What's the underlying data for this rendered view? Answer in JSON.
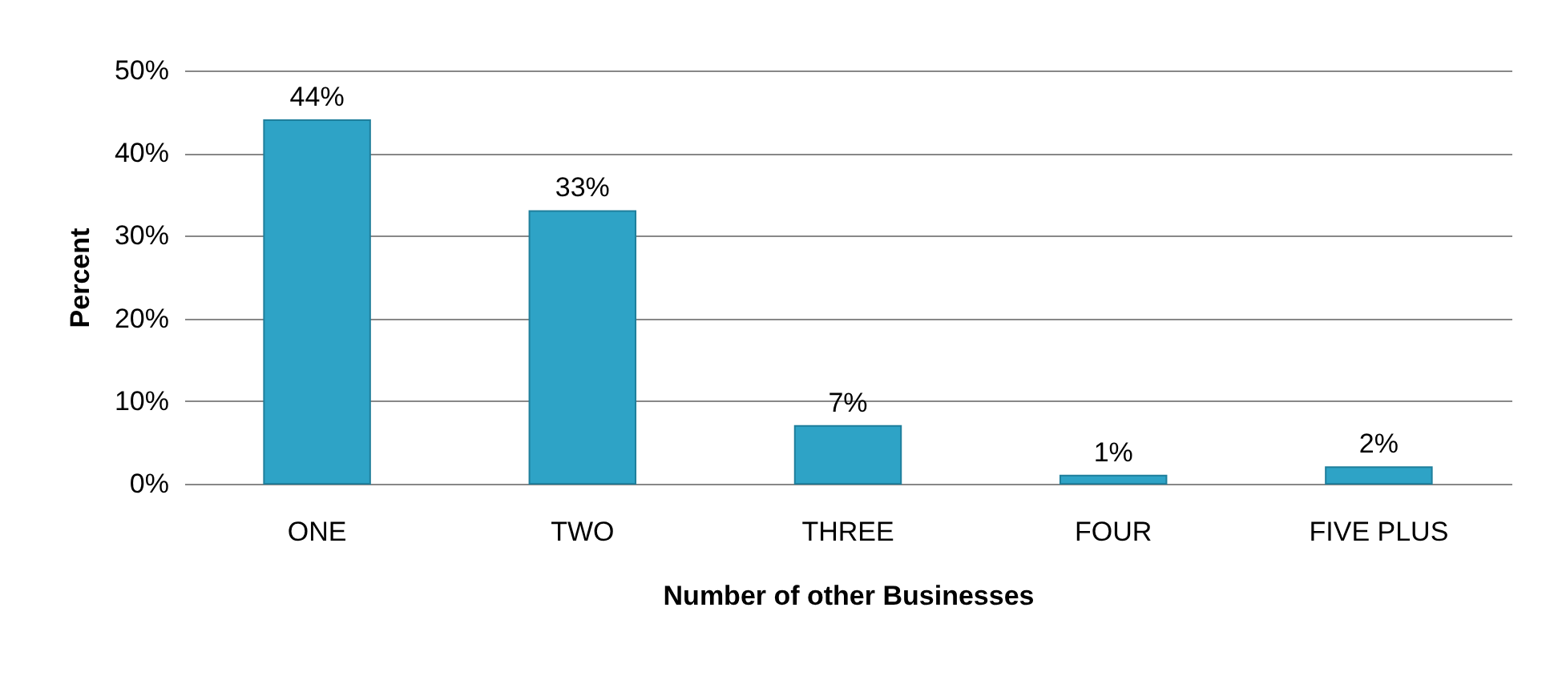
{
  "chart_data": {
    "type": "bar",
    "xlabel": "Number of other Businesses",
    "ylabel": "Percent",
    "categories": [
      "ONE",
      "TWO",
      "THREE",
      "FOUR",
      "FIVE PLUS"
    ],
    "values": [
      44,
      33,
      7,
      1,
      2
    ],
    "value_labels": [
      "44%",
      "33%",
      "7%",
      "1%",
      "2%"
    ],
    "color": "#2ea3c6",
    "ylim": [
      0,
      50
    ],
    "yticks": [
      {
        "value": 0,
        "label": "0%"
      },
      {
        "value": 10,
        "label": "10%"
      },
      {
        "value": 20,
        "label": "20%"
      },
      {
        "value": 30,
        "label": "30%"
      },
      {
        "value": 40,
        "label": "40%"
      },
      {
        "value": 50,
        "label": "50%"
      }
    ],
    "grid": "y"
  }
}
